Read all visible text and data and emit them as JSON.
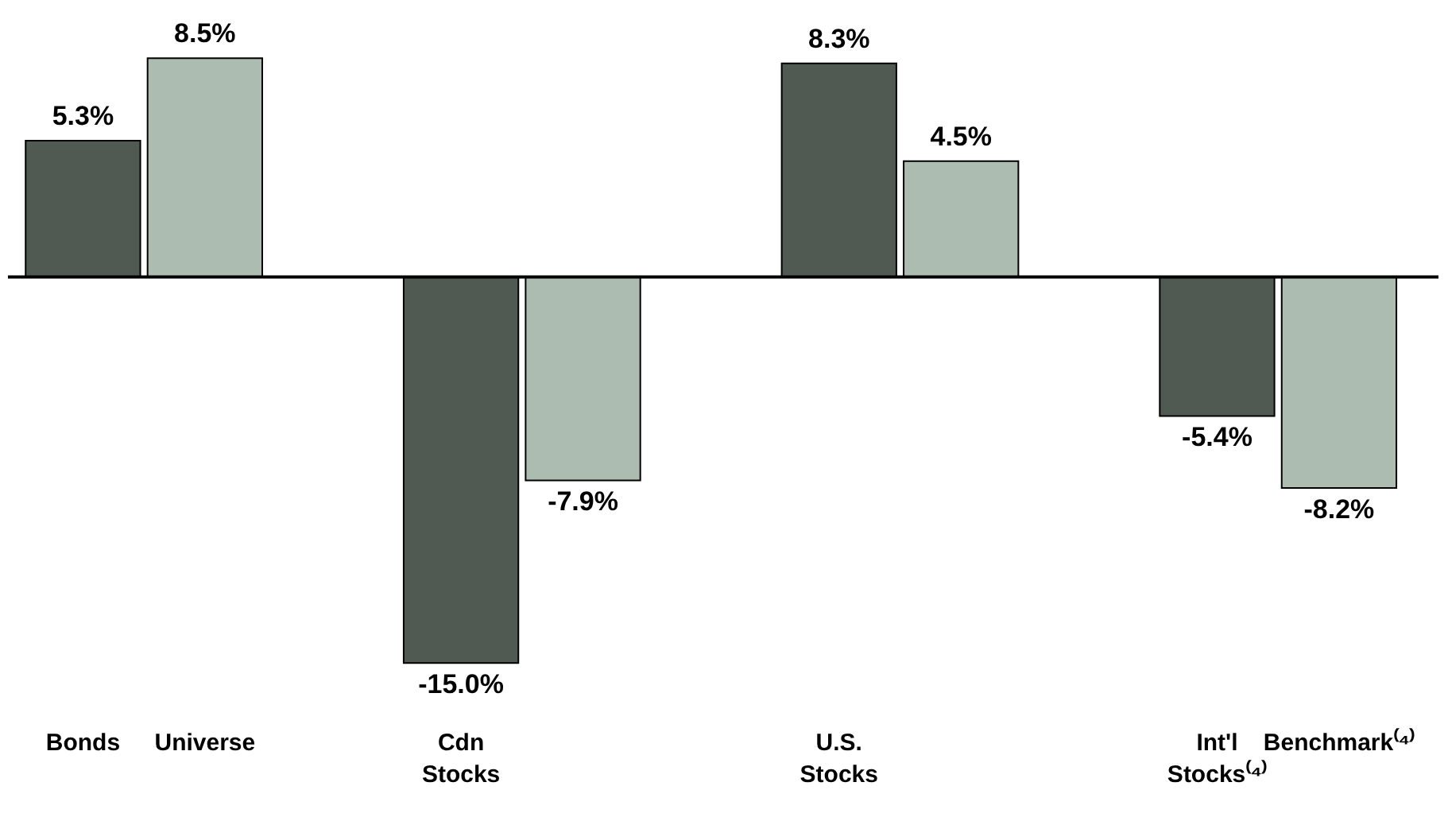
{
  "chart_data": {
    "type": "bar",
    "categories": [
      "Bonds",
      "Universe",
      "Cdn Stocks",
      null,
      "U.S. Stocks",
      null,
      "Int'l Stocks⁽⁴⁾",
      "Benchmark⁽⁴⁾"
    ],
    "values": [
      5.3,
      8.5,
      -15.0,
      -7.9,
      8.3,
      4.5,
      -5.4,
      -8.2
    ],
    "colors": [
      "#505a52",
      "#adbcb0",
      "#505a52",
      "#adbcb0",
      "#505a52",
      "#adbcb0",
      "#505a52",
      "#adbcb0"
    ],
    "value_labels": [
      "5.3%",
      "8.5%",
      "-15.0%",
      "-7.9%",
      "8.3%",
      "4.5%",
      "-5.4%",
      "-8.2%"
    ]
  }
}
